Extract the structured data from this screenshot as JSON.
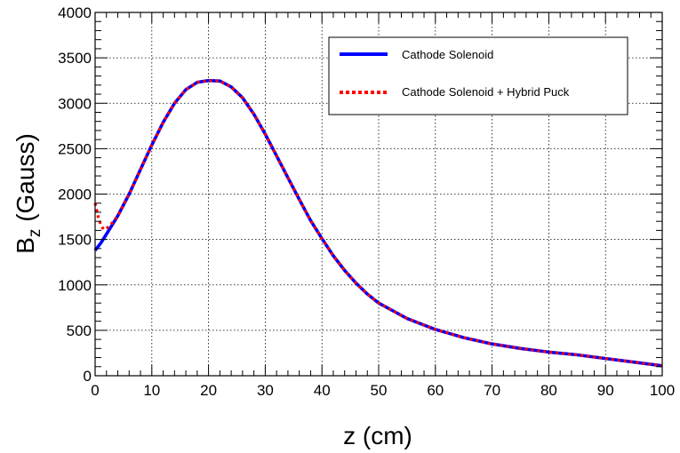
{
  "chart_data": {
    "type": "line",
    "title": "",
    "xlabel": "z (cm)",
    "ylabel": {
      "base": "B",
      "sub": "z",
      "rest": " (Gauss)"
    },
    "xlim": [
      0,
      100
    ],
    "ylim": [
      0,
      4000
    ],
    "x_ticks": [
      "0",
      "10",
      "20",
      "30",
      "40",
      "50",
      "60",
      "70",
      "80",
      "90",
      "100"
    ],
    "y_ticks": [
      "0",
      "500",
      "1000",
      "1500",
      "2000",
      "2500",
      "3000",
      "3500",
      "4000"
    ],
    "grid": true,
    "legend_position": "top-right",
    "series": [
      {
        "name": "Cathode Solenoid",
        "color": "#0000ff",
        "style": "solid",
        "x": [
          0,
          1,
          2,
          4,
          6,
          8,
          10,
          12,
          14,
          16,
          18,
          20,
          22,
          24,
          26,
          28,
          30,
          32,
          34,
          36,
          38,
          40,
          42,
          44,
          46,
          48,
          50,
          55,
          60,
          65,
          70,
          75,
          80,
          85,
          90,
          95,
          100
        ],
        "y": [
          1380,
          1460,
          1560,
          1760,
          2000,
          2270,
          2540,
          2790,
          3000,
          3150,
          3230,
          3250,
          3245,
          3180,
          3060,
          2880,
          2660,
          2420,
          2180,
          1940,
          1710,
          1510,
          1320,
          1160,
          1020,
          900,
          800,
          630,
          510,
          420,
          350,
          300,
          260,
          230,
          190,
          150,
          110
        ]
      },
      {
        "name": "Cathode Solenoid + Hybrid Puck",
        "color": "#ff0000",
        "style": "dotted",
        "x": [
          0,
          0.5,
          1,
          1.5,
          2,
          3,
          4,
          6,
          8,
          10,
          12,
          14,
          16,
          18,
          20,
          22,
          24,
          26,
          28,
          30,
          32,
          34,
          36,
          38,
          40,
          42,
          44,
          46,
          48,
          50,
          55,
          60,
          65,
          70,
          75,
          80,
          85,
          90,
          95,
          100
        ],
        "y": [
          1900,
          1760,
          1660,
          1610,
          1620,
          1680,
          1760,
          2000,
          2270,
          2540,
          2790,
          3000,
          3150,
          3230,
          3250,
          3245,
          3180,
          3060,
          2880,
          2660,
          2420,
          2180,
          1940,
          1710,
          1510,
          1320,
          1160,
          1020,
          900,
          800,
          630,
          510,
          420,
          350,
          300,
          260,
          230,
          190,
          150,
          110
        ]
      }
    ]
  }
}
